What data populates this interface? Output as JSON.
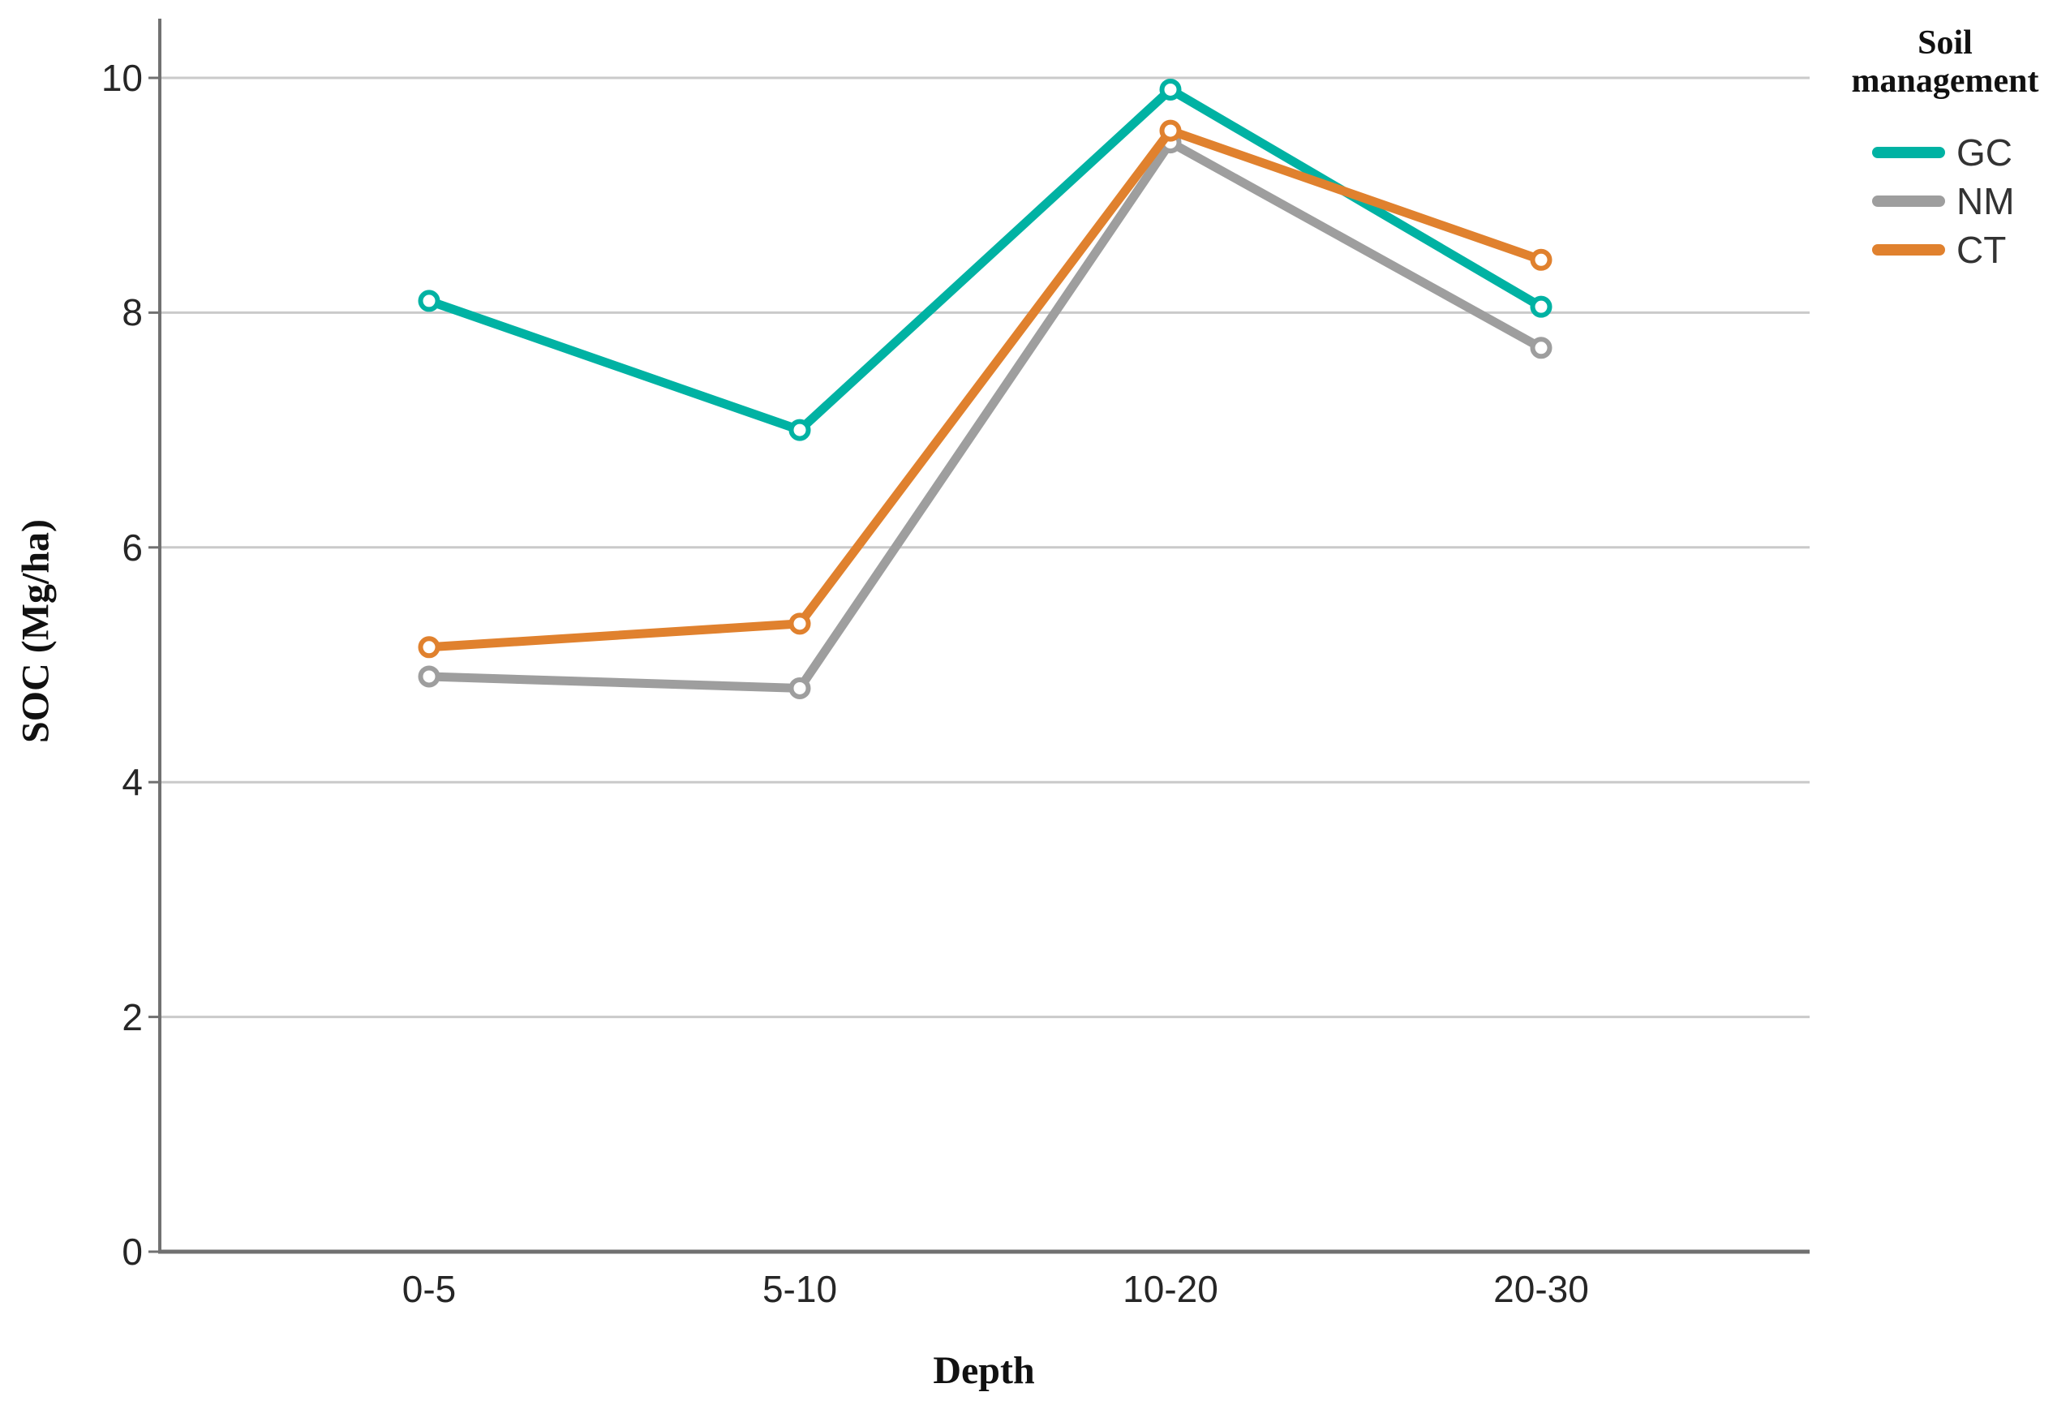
{
  "chart_data": {
    "type": "line",
    "xlabel": "Depth",
    "ylabel": "SOC (Mg/ha)",
    "categories": [
      "0-5",
      "5-10",
      "10-20",
      "20-30"
    ],
    "series": [
      {
        "name": "GC",
        "color": "#00B2A3",
        "values": [
          8.1,
          7.0,
          9.9,
          8.05
        ]
      },
      {
        "name": "NM",
        "color": "#9E9E9E",
        "values": [
          4.9,
          4.8,
          9.45,
          7.7
        ]
      },
      {
        "name": "CT",
        "color": "#E0812E",
        "values": [
          5.15,
          5.35,
          9.55,
          8.45
        ]
      }
    ],
    "ylim": [
      0,
      10.5
    ],
    "y_ticks": [
      0,
      2,
      4,
      6,
      8,
      10
    ],
    "y_tick_labels": [
      "0",
      "2",
      "4",
      "6",
      "8",
      "10"
    ],
    "grid": "horizontal",
    "marker": "open-circle",
    "legend": {
      "title": "Soil management",
      "position": "top-right"
    },
    "colors": {
      "axis": "#717171",
      "gridline": "#CACACA",
      "tick_text": "#262626",
      "marker_fill": "#FFFFFF"
    }
  }
}
